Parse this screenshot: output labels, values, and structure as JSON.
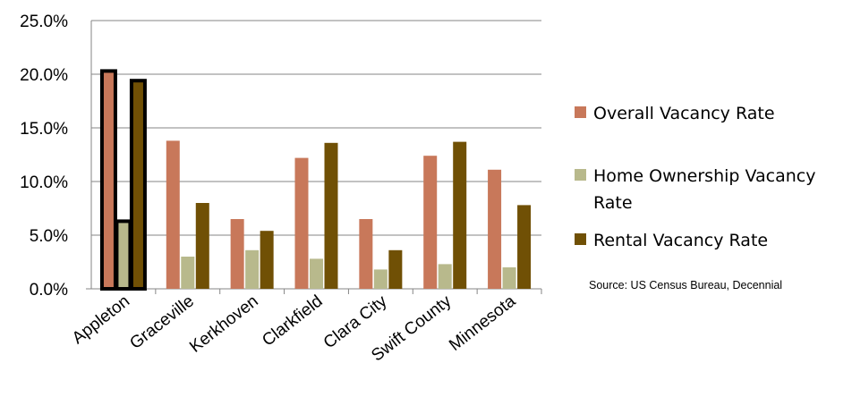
{
  "chart_data": {
    "type": "bar",
    "categories": [
      "Appleton",
      "Graceville",
      "Kerkhoven",
      "Clarkfield",
      "Clara City",
      "Swift County",
      "Minnesota"
    ],
    "series": [
      {
        "name": "Overall Vacancy Rate",
        "color": "#C8785A",
        "values": [
          20.3,
          13.8,
          6.5,
          12.2,
          6.5,
          12.4,
          11.1
        ]
      },
      {
        "name": "Home Ownership Vacancy Rate",
        "color": "#B8B98C",
        "values": [
          6.3,
          3.0,
          3.6,
          2.8,
          1.8,
          2.3,
          2.0
        ]
      },
      {
        "name": "Rental Vacancy Rate",
        "color": "#705005",
        "values": [
          19.4,
          8.0,
          5.4,
          13.6,
          3.6,
          13.7,
          7.8
        ]
      }
    ],
    "y_ticks": [
      "0.0%",
      "5.0%",
      "10.0%",
      "15.0%",
      "20.0%",
      "25.0%"
    ],
    "ylim": [
      0,
      25
    ],
    "grid": true,
    "highlighted_category": "Appleton",
    "legend_position": "right",
    "source_note": "Source: US Census Bureau, Decennial"
  }
}
